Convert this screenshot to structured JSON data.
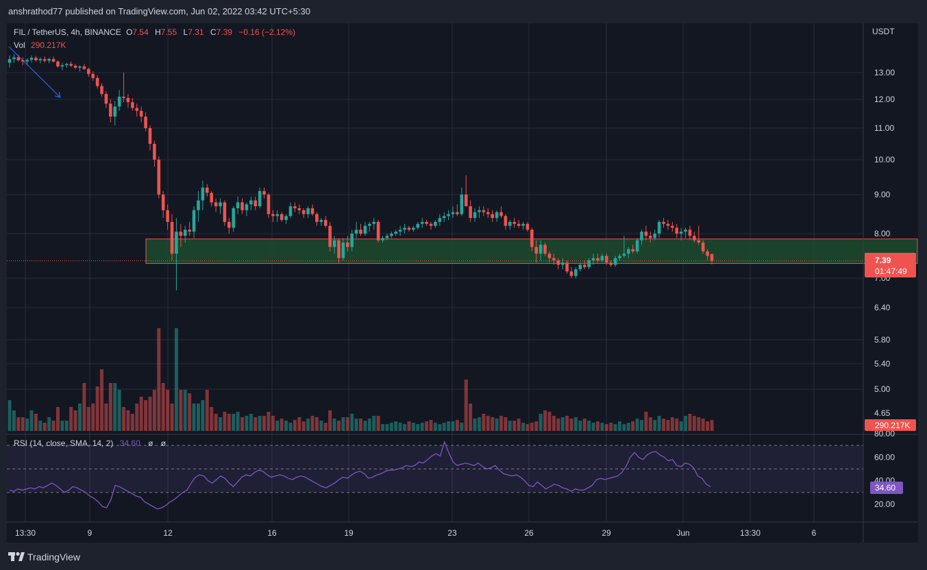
{
  "header": {
    "published": "anshrathod77 published on TradingView.com, Jun 02, 2022 03:42 UTC+5:30"
  },
  "legend": {
    "symbol": "FIL / TetherUS, 4h, BINANCE",
    "o_label": "O",
    "o_value": "7.54",
    "h_label": "H",
    "h_value": "7.55",
    "l_label": "L",
    "l_value": "7.31",
    "c_label": "C",
    "c_value": "7.39",
    "change": "−0.16 (−2.12%)",
    "vol_label": "Vol",
    "vol_value": "290.217K"
  },
  "rsi_legend": {
    "label": "RSI (14, close, SMA, 14, 2)",
    "value": "34.60",
    "extra1": "ø",
    "extra2": "ø"
  },
  "price_axis": {
    "currency": "USDT",
    "ticks": [
      "13.00",
      "12.00",
      "11.00",
      "10.00",
      "9.00",
      "8.00",
      "7.00",
      "6.40",
      "5.80",
      "5.40",
      "5.00",
      "4.65"
    ],
    "last_price": "7.39",
    "countdown": "01:47:49",
    "volume_label": "290.217K"
  },
  "rsi_axis": {
    "ticks": [
      "80.00",
      "60.00",
      "40.00",
      "20.00"
    ],
    "current": "34.60"
  },
  "time_axis": {
    "ticks": [
      "13:30",
      "9",
      "12",
      "16",
      "19",
      "23",
      "26",
      "29",
      "Jun",
      "13:30",
      "6"
    ]
  },
  "branding": {
    "logo_text": "TradingView"
  },
  "colors": {
    "background": "#1e222d",
    "grid": "#2a2e39",
    "up": "#26a69a",
    "down": "#ef5350",
    "rsi_line": "#7e57c2",
    "zone_fill": "#1e4a2c",
    "zone_border": "#ef5350"
  },
  "chart_data": {
    "type": "candlestick",
    "symbol": "FIL / TetherUS",
    "interval": "4h",
    "exchange": "BINANCE",
    "price_axis_label": "USDT",
    "ylim": [
      6.1,
      14.4
    ],
    "support_zone": [
      7.33,
      7.88
    ],
    "last_price": 7.39,
    "ohlc": [
      [
        13.4,
        13.7,
        13.2,
        13.55
      ],
      [
        13.55,
        13.75,
        13.4,
        13.62
      ],
      [
        13.62,
        13.72,
        13.45,
        13.5
      ],
      [
        13.5,
        13.62,
        13.3,
        13.45
      ],
      [
        13.45,
        13.58,
        13.32,
        13.52
      ],
      [
        13.52,
        13.7,
        13.4,
        13.6
      ],
      [
        13.6,
        13.68,
        13.45,
        13.5
      ],
      [
        13.5,
        13.62,
        13.38,
        13.55
      ],
      [
        13.55,
        13.65,
        13.4,
        13.48
      ],
      [
        13.48,
        13.6,
        13.38,
        13.55
      ],
      [
        13.55,
        13.65,
        13.4,
        13.45
      ],
      [
        13.45,
        13.5,
        13.2,
        13.25
      ],
      [
        13.25,
        13.4,
        13.1,
        13.3
      ],
      [
        13.3,
        13.4,
        13.2,
        13.35
      ],
      [
        13.35,
        13.45,
        13.22,
        13.28
      ],
      [
        13.28,
        13.35,
        13.15,
        13.2
      ],
      [
        13.2,
        13.3,
        13.05,
        13.25
      ],
      [
        13.25,
        13.35,
        13.1,
        13.15
      ],
      [
        13.15,
        13.2,
        12.85,
        12.95
      ],
      [
        12.95,
        13.05,
        12.7,
        12.8
      ],
      [
        12.8,
        12.9,
        12.4,
        12.5
      ],
      [
        12.5,
        12.6,
        12.1,
        12.2
      ],
      [
        12.2,
        12.3,
        11.7,
        11.85
      ],
      [
        11.85,
        12.0,
        11.2,
        11.4
      ],
      [
        11.4,
        11.95,
        11.1,
        11.75
      ],
      [
        11.75,
        12.35,
        11.6,
        12.1
      ],
      [
        12.1,
        13.0,
        11.9,
        12.05
      ],
      [
        12.05,
        12.2,
        11.7,
        11.9
      ],
      [
        11.9,
        12.05,
        11.6,
        11.7
      ],
      [
        11.7,
        11.85,
        11.4,
        11.6
      ],
      [
        11.6,
        11.75,
        11.2,
        11.4
      ],
      [
        11.4,
        11.55,
        10.9,
        11.0
      ],
      [
        11.0,
        11.1,
        10.3,
        10.5
      ],
      [
        10.5,
        10.6,
        9.8,
        10.0
      ],
      [
        10.0,
        10.1,
        8.9,
        9.0
      ],
      [
        9.0,
        9.1,
        8.4,
        8.6
      ],
      [
        8.6,
        8.75,
        8.1,
        8.3
      ],
      [
        8.3,
        8.5,
        7.4,
        7.55
      ],
      [
        7.55,
        8.4,
        6.75,
        8.05
      ],
      [
        8.05,
        8.25,
        7.7,
        7.95
      ],
      [
        7.95,
        8.2,
        7.8,
        8.1
      ],
      [
        8.1,
        8.3,
        7.95,
        8.05
      ],
      [
        8.05,
        8.7,
        7.9,
        8.6
      ],
      [
        8.6,
        9.1,
        8.3,
        8.85
      ],
      [
        8.85,
        9.4,
        8.6,
        9.2
      ],
      [
        9.2,
        9.3,
        8.95,
        9.05
      ],
      [
        9.05,
        9.1,
        8.7,
        8.8
      ],
      [
        8.8,
        8.9,
        8.55,
        8.7
      ],
      [
        8.7,
        8.9,
        8.5,
        8.8
      ],
      [
        8.8,
        8.85,
        8.2,
        8.3
      ],
      [
        8.3,
        8.4,
        8.0,
        8.15
      ],
      [
        8.15,
        8.7,
        8.05,
        8.65
      ],
      [
        8.65,
        8.95,
        8.5,
        8.8
      ],
      [
        8.8,
        8.9,
        8.5,
        8.6
      ],
      [
        8.6,
        8.8,
        8.45,
        8.75
      ],
      [
        8.75,
        8.95,
        8.6,
        8.85
      ],
      [
        8.85,
        8.95,
        8.6,
        8.7
      ],
      [
        8.7,
        9.2,
        8.65,
        9.1
      ],
      [
        9.1,
        9.2,
        8.9,
        9.0
      ],
      [
        9.0,
        9.05,
        8.4,
        8.5
      ],
      [
        8.5,
        8.6,
        8.3,
        8.45
      ],
      [
        8.45,
        8.6,
        8.3,
        8.5
      ],
      [
        8.5,
        8.55,
        8.3,
        8.35
      ],
      [
        8.35,
        8.5,
        8.25,
        8.45
      ],
      [
        8.45,
        8.8,
        8.4,
        8.7
      ],
      [
        8.7,
        8.8,
        8.55,
        8.65
      ],
      [
        8.65,
        8.75,
        8.5,
        8.6
      ],
      [
        8.6,
        8.65,
        8.4,
        8.5
      ],
      [
        8.5,
        8.7,
        8.4,
        8.65
      ],
      [
        8.65,
        8.75,
        8.45,
        8.5
      ],
      [
        8.5,
        8.55,
        8.2,
        8.3
      ],
      [
        8.3,
        8.4,
        8.2,
        8.35
      ],
      [
        8.35,
        8.45,
        8.15,
        8.2
      ],
      [
        8.2,
        8.3,
        7.6,
        7.7
      ],
      [
        7.7,
        7.95,
        7.55,
        7.85
      ],
      [
        7.85,
        7.9,
        7.35,
        7.45
      ],
      [
        7.45,
        7.9,
        7.4,
        7.8
      ],
      [
        7.8,
        7.95,
        7.6,
        7.7
      ],
      [
        7.7,
        8.1,
        7.6,
        8.0
      ],
      [
        8.0,
        8.3,
        7.9,
        8.1
      ],
      [
        8.1,
        8.25,
        7.95,
        8.0
      ],
      [
        8.0,
        8.3,
        7.95,
        8.2
      ],
      [
        8.2,
        8.3,
        8.05,
        8.25
      ],
      [
        8.25,
        8.4,
        8.1,
        8.3
      ],
      [
        8.3,
        8.35,
        7.8,
        7.85
      ],
      [
        7.85,
        7.95,
        7.8,
        7.9
      ],
      [
        7.9,
        8.0,
        7.85,
        7.95
      ],
      [
        7.95,
        8.05,
        7.9,
        8.0
      ],
      [
        8.0,
        8.1,
        7.95,
        8.05
      ],
      [
        8.05,
        8.2,
        7.95,
        8.1
      ],
      [
        8.1,
        8.25,
        8.0,
        8.15
      ],
      [
        8.15,
        8.2,
        8.05,
        8.1
      ],
      [
        8.1,
        8.2,
        8.05,
        8.15
      ],
      [
        8.15,
        8.3,
        8.1,
        8.25
      ],
      [
        8.25,
        8.4,
        8.15,
        8.3
      ],
      [
        8.3,
        8.35,
        8.2,
        8.25
      ],
      [
        8.25,
        8.3,
        8.1,
        8.2
      ],
      [
        8.2,
        8.35,
        8.15,
        8.3
      ],
      [
        8.3,
        8.5,
        8.2,
        8.4
      ],
      [
        8.4,
        8.55,
        8.3,
        8.45
      ],
      [
        8.45,
        8.6,
        8.35,
        8.5
      ],
      [
        8.5,
        8.7,
        8.4,
        8.55
      ],
      [
        8.55,
        8.75,
        8.45,
        8.5
      ],
      [
        8.5,
        9.2,
        8.45,
        9.0
      ],
      [
        9.0,
        9.55,
        8.7,
        8.7
      ],
      [
        8.7,
        8.85,
        8.3,
        8.4
      ],
      [
        8.4,
        8.65,
        8.3,
        8.55
      ],
      [
        8.55,
        8.7,
        8.4,
        8.6
      ],
      [
        8.6,
        8.7,
        8.45,
        8.55
      ],
      [
        8.55,
        8.65,
        8.4,
        8.5
      ],
      [
        8.5,
        8.6,
        8.3,
        8.4
      ],
      [
        8.4,
        8.6,
        8.3,
        8.55
      ],
      [
        8.55,
        8.7,
        8.4,
        8.45
      ],
      [
        8.45,
        8.5,
        8.1,
        8.2
      ],
      [
        8.2,
        8.35,
        8.1,
        8.3
      ],
      [
        8.3,
        8.4,
        8.15,
        8.25
      ],
      [
        8.25,
        8.35,
        8.15,
        8.2
      ],
      [
        8.2,
        8.3,
        8.1,
        8.25
      ],
      [
        8.25,
        8.3,
        8.05,
        8.1
      ],
      [
        8.1,
        8.15,
        7.6,
        7.7
      ],
      [
        7.7,
        7.85,
        7.35,
        7.55
      ],
      [
        7.55,
        7.85,
        7.4,
        7.75
      ],
      [
        7.75,
        7.8,
        7.5,
        7.55
      ],
      [
        7.55,
        7.6,
        7.35,
        7.45
      ],
      [
        7.45,
        7.55,
        7.3,
        7.4
      ],
      [
        7.4,
        7.45,
        7.2,
        7.3
      ],
      [
        7.3,
        7.45,
        7.2,
        7.35
      ],
      [
        7.35,
        7.4,
        7.1,
        7.15
      ],
      [
        7.15,
        7.25,
        7.0,
        7.05
      ],
      [
        7.05,
        7.25,
        7.0,
        7.2
      ],
      [
        7.2,
        7.35,
        7.15,
        7.3
      ],
      [
        7.3,
        7.4,
        7.2,
        7.25
      ],
      [
        7.25,
        7.45,
        7.2,
        7.4
      ],
      [
        7.4,
        7.55,
        7.3,
        7.45
      ],
      [
        7.45,
        7.55,
        7.35,
        7.4
      ],
      [
        7.4,
        7.55,
        7.35,
        7.5
      ],
      [
        7.5,
        7.55,
        7.3,
        7.35
      ],
      [
        7.35,
        7.4,
        7.25,
        7.3
      ],
      [
        7.3,
        7.5,
        7.25,
        7.45
      ],
      [
        7.45,
        7.55,
        7.4,
        7.5
      ],
      [
        7.5,
        7.95,
        7.45,
        7.55
      ],
      [
        7.55,
        7.7,
        7.45,
        7.65
      ],
      [
        7.65,
        7.75,
        7.55,
        7.6
      ],
      [
        7.6,
        7.9,
        7.55,
        7.85
      ],
      [
        7.85,
        8.1,
        7.75,
        8.05
      ],
      [
        8.05,
        8.2,
        7.85,
        7.95
      ],
      [
        7.95,
        8.05,
        7.8,
        7.9
      ],
      [
        7.9,
        8.1,
        7.85,
        8.0
      ],
      [
        8.0,
        8.35,
        7.9,
        8.3
      ],
      [
        8.3,
        8.4,
        8.15,
        8.25
      ],
      [
        8.25,
        8.35,
        8.1,
        8.2
      ],
      [
        8.2,
        8.3,
        8.05,
        8.15
      ],
      [
        8.15,
        8.25,
        7.9,
        8.0
      ],
      [
        8.0,
        8.15,
        7.85,
        8.05
      ],
      [
        8.05,
        8.15,
        7.9,
        8.1
      ],
      [
        8.1,
        8.2,
        7.85,
        7.95
      ],
      [
        7.95,
        8.05,
        7.8,
        7.85
      ],
      [
        7.85,
        8.2,
        7.75,
        7.8
      ],
      [
        7.8,
        7.85,
        7.55,
        7.6
      ],
      [
        7.6,
        7.65,
        7.4,
        7.5
      ],
      [
        7.54,
        7.55,
        7.31,
        7.39
      ]
    ],
    "volume_axis_label": "Vol",
    "volume_last": "290.217K",
    "rsi": {
      "name": "RSI (14, close, SMA, 14, 2)",
      "ylim": [
        0,
        100
      ],
      "bands": [
        30,
        50,
        70
      ],
      "last": 34.6,
      "values": [
        32,
        31,
        33,
        32,
        33,
        34,
        33,
        35,
        34,
        36,
        38,
        36,
        33,
        30,
        32,
        35,
        34,
        32,
        30,
        27,
        25,
        22,
        18,
        17,
        24,
        36,
        35,
        33,
        31,
        29,
        27,
        26,
        22,
        20,
        18,
        16,
        17,
        19,
        22,
        24,
        27,
        30,
        32,
        38,
        43,
        45,
        44,
        40,
        38,
        41,
        44,
        42,
        38,
        35,
        39,
        43,
        45,
        44,
        47,
        49,
        48,
        45,
        43,
        44,
        45,
        44,
        42,
        41,
        43,
        44,
        43,
        41,
        39,
        37,
        35,
        34,
        36,
        38,
        41,
        43,
        42,
        45,
        47,
        48,
        46,
        42,
        43,
        45,
        46,
        48,
        49,
        49,
        50,
        51,
        53,
        52,
        53,
        56,
        55,
        58,
        61,
        63,
        61,
        73,
        64,
        56,
        53,
        54,
        55,
        54,
        53,
        55,
        52,
        50,
        51,
        53,
        49,
        46,
        45,
        44,
        45,
        43,
        40,
        36,
        35,
        39,
        36,
        33,
        35,
        37,
        36,
        34,
        33,
        31,
        33,
        32,
        32,
        34,
        36,
        41,
        42,
        41,
        42,
        43,
        44,
        47,
        52,
        60,
        64,
        60,
        58,
        62,
        64,
        65,
        62,
        60,
        57,
        58,
        53,
        52,
        55,
        54,
        51,
        44,
        42,
        37,
        35
      ]
    },
    "time_ticks": [
      "13:30",
      "9",
      "12",
      "16",
      "19",
      "23",
      "26",
      "29",
      "Jun",
      "13:30",
      "6"
    ]
  }
}
